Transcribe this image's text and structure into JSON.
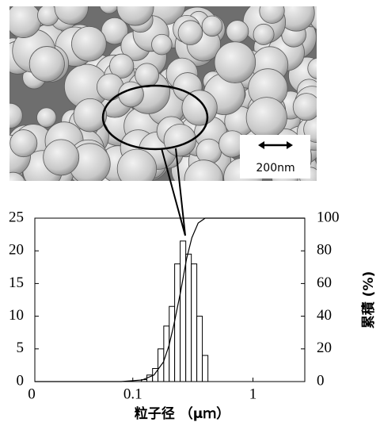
{
  "chart_data": {
    "type": "histogram",
    "annotation": "200nm",
    "xlabel": "粒子径 （μｍ）",
    "y2label": "累積 (%)",
    "xscale": "log",
    "xlim": [
      0.0153,
      2.7
    ],
    "xticks": [
      {
        "value": 0.0153,
        "label": "0"
      },
      0.1,
      1
    ],
    "ylim": [
      0,
      25
    ],
    "yticks": [
      0,
      5,
      10,
      15,
      20,
      25
    ],
    "y2lim": [
      0,
      100
    ],
    "y2ticks": [
      0,
      20,
      40,
      60,
      80,
      100
    ],
    "histogram": {
      "color": "#ffffff",
      "bins": [
        0.118,
        0.131,
        0.146,
        0.162,
        0.181,
        0.201,
        0.223,
        0.248,
        0.276,
        0.307,
        0.341,
        0.379,
        0.422
      ],
      "values": [
        0.3,
        1,
        2,
        5,
        8.5,
        11.5,
        18,
        21.5,
        19.5,
        18,
        10,
        4
      ]
    },
    "cumulative": {
      "axis": "y2",
      "color": "#000000",
      "x": [
        0.0153,
        0.08,
        0.12,
        0.15,
        0.18,
        0.2,
        0.22,
        0.25,
        0.28,
        0.31,
        0.35,
        0.4,
        2.7
      ],
      "values": [
        0,
        0,
        1,
        4,
        12,
        22,
        35,
        55,
        75,
        88,
        97,
        100,
        100
      ]
    }
  }
}
